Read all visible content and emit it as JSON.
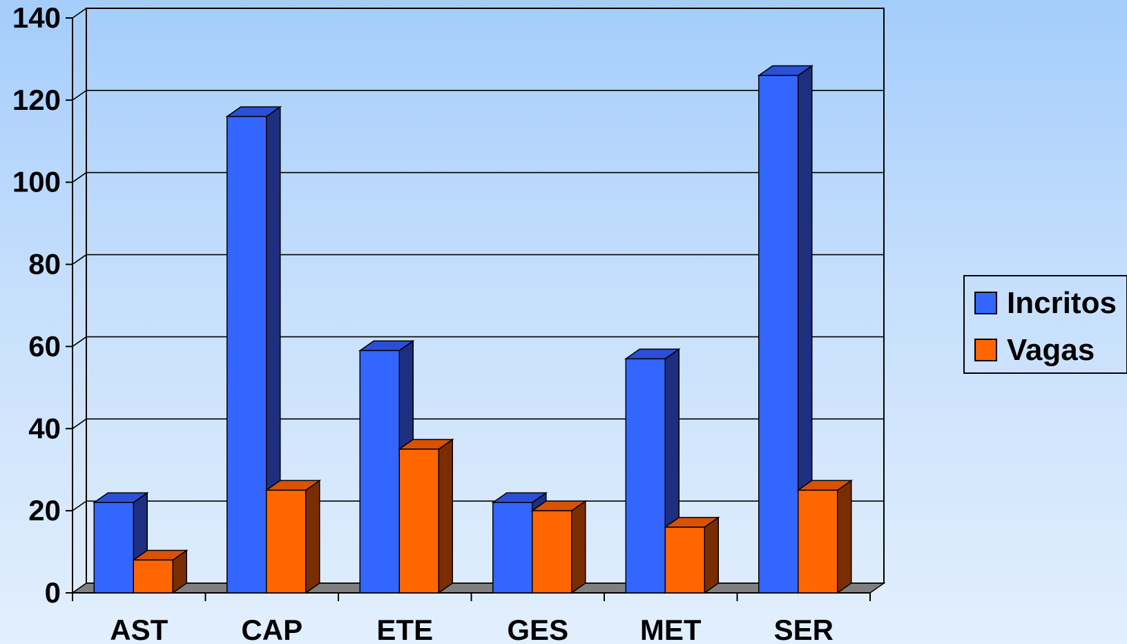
{
  "chart_data": {
    "type": "bar",
    "three_d": true,
    "categories": [
      "AST",
      "CAP",
      "ETE",
      "GES",
      "MET",
      "SER"
    ],
    "series": [
      {
        "name": "Incritos",
        "values": [
          22,
          116,
          59,
          22,
          57,
          126
        ],
        "color": "#3366ff",
        "side_color": "#1e2f80",
        "top_color": "#2b4fd6"
      },
      {
        "name": "Vagas",
        "values": [
          8,
          25,
          35,
          20,
          16,
          25
        ],
        "color": "#ff6600",
        "side_color": "#7a2e00",
        "top_color": "#d95200"
      }
    ],
    "yticks": [
      0,
      20,
      40,
      60,
      80,
      100,
      120,
      140
    ],
    "ylim": [
      0,
      140
    ],
    "grid": true,
    "legend": "right",
    "title": "",
    "xlabel": "",
    "ylabel": ""
  }
}
